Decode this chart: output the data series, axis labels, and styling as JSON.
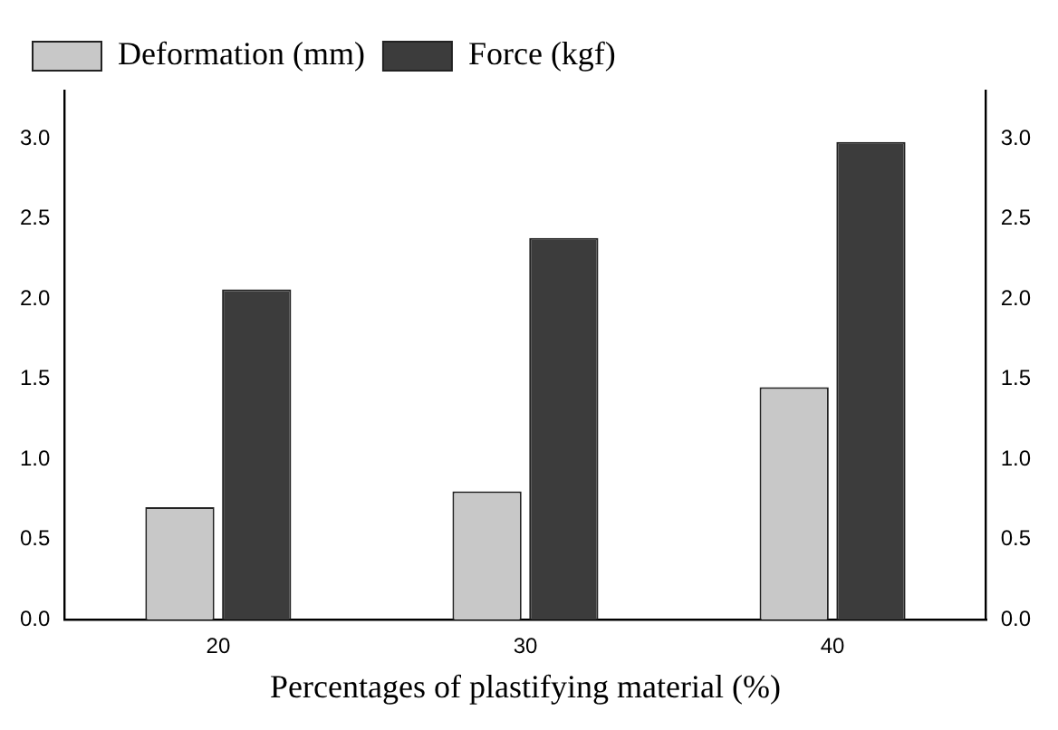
{
  "chart_data": {
    "type": "bar",
    "xlabel": "Percentages of plastifying material (%)",
    "categories": [
      "20",
      "30",
      "40"
    ],
    "series": [
      {
        "name": "Deformation (mm)",
        "color": "#c8c8c8",
        "values": [
          0.7,
          0.8,
          1.45
        ]
      },
      {
        "name": "Force (kgf)",
        "color": "#3c3c3c",
        "values": [
          2.06,
          2.38,
          2.98
        ]
      }
    ],
    "ylim": [
      0,
      3.3
    ],
    "yticks": [
      {
        "value": 0,
        "label": "0.0"
      },
      {
        "value": 0.5,
        "label": "0.5"
      },
      {
        "value": 1,
        "label": "1.0"
      },
      {
        "value": 1.5,
        "label": "1.5"
      },
      {
        "value": 2,
        "label": "2.0"
      },
      {
        "value": 2.5,
        "label": "2.5"
      },
      {
        "value": 3,
        "label": "3.0"
      }
    ],
    "y2lim": [
      0,
      3.3
    ],
    "y2ticks": [
      {
        "value": 0,
        "label": "0.0"
      },
      {
        "value": 0.5,
        "label": "0.5"
      },
      {
        "value": 1,
        "label": "1.0"
      },
      {
        "value": 1.5,
        "label": "1.5"
      },
      {
        "value": 2,
        "label": "2.0"
      },
      {
        "value": 2.5,
        "label": "2.5"
      },
      {
        "value": 3,
        "label": "3.0"
      }
    ],
    "grid": false,
    "legend": "top left"
  }
}
